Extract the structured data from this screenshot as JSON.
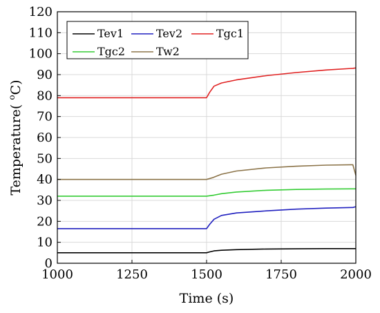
{
  "chart_data": {
    "type": "line",
    "title": "",
    "xlabel": "Time (s)",
    "ylabel_main": "Temperature( ",
    "ylabel_sup": "o",
    "ylabel_unit": "C)",
    "xlim": [
      1000,
      2000
    ],
    "ylim": [
      0,
      120
    ],
    "x_ticks": [
      1000,
      1250,
      1500,
      1750,
      2000
    ],
    "y_ticks": [
      0,
      10,
      20,
      30,
      40,
      50,
      60,
      70,
      80,
      90,
      100,
      110,
      120
    ],
    "grid": true,
    "legend_position": "top-left",
    "series": [
      {
        "name": "Tev1",
        "color": "#000000",
        "points": [
          [
            1000,
            5
          ],
          [
            1500,
            5
          ],
          [
            1510,
            5.4
          ],
          [
            1525,
            5.9
          ],
          [
            1550,
            6.2
          ],
          [
            1600,
            6.5
          ],
          [
            1700,
            6.8
          ],
          [
            1800,
            6.9
          ],
          [
            1900,
            7.0
          ],
          [
            2000,
            7.0
          ]
        ]
      },
      {
        "name": "Tev2",
        "color": "#1f1fbf",
        "points": [
          [
            1000,
            16.5
          ],
          [
            1500,
            16.5
          ],
          [
            1510,
            18.5
          ],
          [
            1525,
            21.0
          ],
          [
            1550,
            22.8
          ],
          [
            1600,
            24.0
          ],
          [
            1700,
            25.0
          ],
          [
            1800,
            25.8
          ],
          [
            1900,
            26.3
          ],
          [
            1990,
            26.6
          ],
          [
            2000,
            27.0
          ]
        ]
      },
      {
        "name": "Tgc1",
        "color": "#e02020",
        "points": [
          [
            1000,
            79
          ],
          [
            1500,
            79
          ],
          [
            1510,
            81.5
          ],
          [
            1525,
            84.5
          ],
          [
            1550,
            86.0
          ],
          [
            1600,
            87.5
          ],
          [
            1700,
            89.5
          ],
          [
            1800,
            91.0
          ],
          [
            1900,
            92.2
          ],
          [
            1990,
            93.0
          ],
          [
            2000,
            93.2
          ]
        ]
      },
      {
        "name": "Tgc2",
        "color": "#33cc33",
        "points": [
          [
            1000,
            32
          ],
          [
            1500,
            32
          ],
          [
            1525,
            32.5
          ],
          [
            1550,
            33.2
          ],
          [
            1600,
            34.0
          ],
          [
            1700,
            34.8
          ],
          [
            1800,
            35.2
          ],
          [
            1900,
            35.4
          ],
          [
            2000,
            35.5
          ]
        ]
      },
      {
        "name": "Tw2",
        "color": "#8b7348",
        "points": [
          [
            1000,
            40
          ],
          [
            1500,
            40
          ],
          [
            1520,
            40.8
          ],
          [
            1550,
            42.5
          ],
          [
            1600,
            44.0
          ],
          [
            1700,
            45.5
          ],
          [
            1800,
            46.3
          ],
          [
            1900,
            46.8
          ],
          [
            1990,
            47.0
          ],
          [
            2000,
            42.0
          ]
        ]
      }
    ]
  }
}
